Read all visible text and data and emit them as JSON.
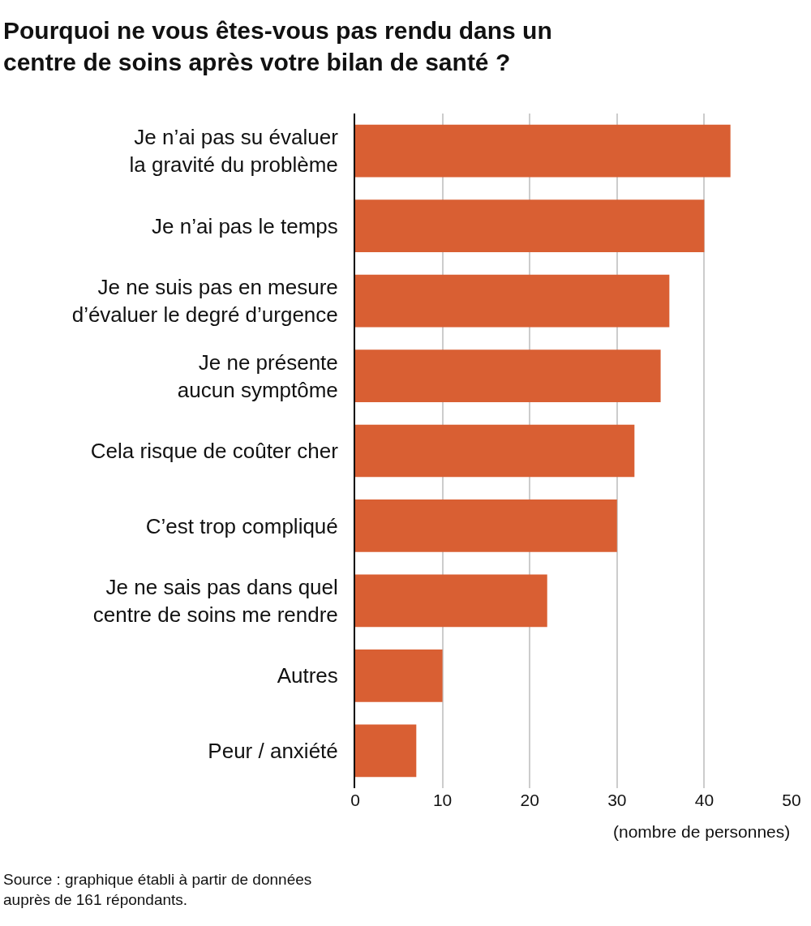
{
  "chart_data": {
    "type": "bar",
    "orientation": "horizontal",
    "title": "Pourquoi ne vous êtes-vous pas rendu dans un\ncentre de soins après votre bilan de santé ?",
    "xlabel": "(nombre de personnes)",
    "categories": [
      "Je n’ai pas su évaluer\nla gravité du problème",
      "Je n’ai pas le temps",
      "Je ne suis pas en mesure\nd’évaluer le degré d’urgence",
      "Je ne présente\naucun symptôme",
      "Cela risque de coûter cher",
      "C’est trop compliqué",
      "Je ne sais pas dans quel\ncentre de soins me rendre",
      "Autres",
      "Peur / anxiété"
    ],
    "values": [
      43,
      40,
      36,
      35,
      32,
      30,
      22,
      10,
      7
    ],
    "color": "#d95f33",
    "xlim": [
      0,
      50
    ],
    "xticks": [
      0,
      10,
      20,
      30,
      40,
      50
    ],
    "grid": "x",
    "legend": false,
    "annotations": [
      "Source : graphique établi à partir de données\nauprès de 161 répondants."
    ]
  }
}
